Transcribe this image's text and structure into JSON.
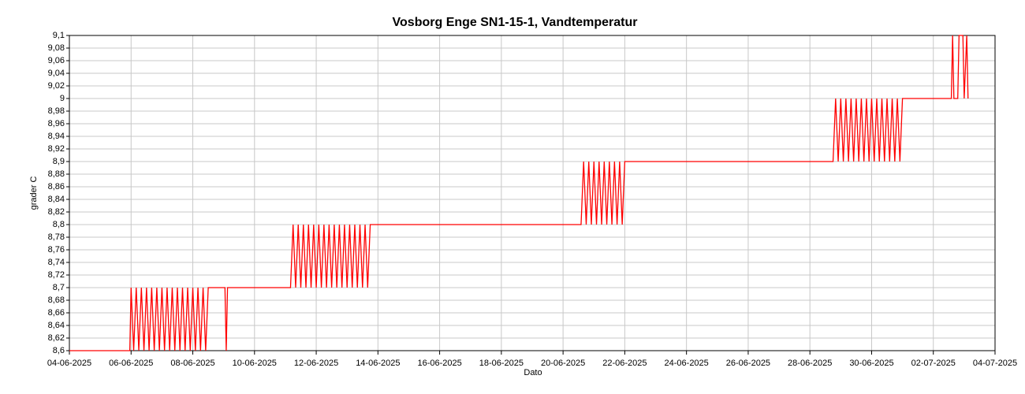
{
  "chart_data": {
    "type": "line",
    "title": "Vosborg Enge SN1-15-1, Vandtemperatur",
    "x_label": "Dato",
    "y_label": "grader C",
    "color": "#ff0000",
    "grid": true,
    "xlim": [
      "2025-06-04",
      "2025-07-04"
    ],
    "xticks": [
      {
        "value": "2025-06-04",
        "label": "04-06-2025"
      },
      {
        "value": "2025-06-06",
        "label": "06-06-2025"
      },
      {
        "value": "2025-06-08",
        "label": "08-06-2025"
      },
      {
        "value": "2025-06-10",
        "label": "10-06-2025"
      },
      {
        "value": "2025-06-12",
        "label": "12-06-2025"
      },
      {
        "value": "2025-06-14",
        "label": "14-06-2025"
      },
      {
        "value": "2025-06-16",
        "label": "16-06-2025"
      },
      {
        "value": "2025-06-18",
        "label": "18-06-2025"
      },
      {
        "value": "2025-06-20",
        "label": "20-06-2025"
      },
      {
        "value": "2025-06-22",
        "label": "22-06-2025"
      },
      {
        "value": "2025-06-24",
        "label": "24-06-2025"
      },
      {
        "value": "2025-06-26",
        "label": "26-06-2025"
      },
      {
        "value": "2025-06-28",
        "label": "28-06-2025"
      },
      {
        "value": "2025-06-30",
        "label": "30-06-2025"
      },
      {
        "value": "2025-07-02",
        "label": "02-07-2025"
      },
      {
        "value": "2025-07-04",
        "label": "04-07-2025"
      }
    ],
    "ylim": [
      8.6,
      9.1
    ],
    "yticks": [
      {
        "value": 8.6,
        "label": "8,6"
      },
      {
        "value": 8.62,
        "label": "8,62"
      },
      {
        "value": 8.64,
        "label": "8,64"
      },
      {
        "value": 8.66,
        "label": "8,66"
      },
      {
        "value": 8.68,
        "label": "8,68"
      },
      {
        "value": 8.7,
        "label": "8,7"
      },
      {
        "value": 8.72,
        "label": "8,72"
      },
      {
        "value": 8.74,
        "label": "8,74"
      },
      {
        "value": 8.76,
        "label": "8,76"
      },
      {
        "value": 8.78,
        "label": "8,78"
      },
      {
        "value": 8.8,
        "label": "8,8"
      },
      {
        "value": 8.82,
        "label": "8,82"
      },
      {
        "value": 8.84,
        "label": "8,84"
      },
      {
        "value": 8.86,
        "label": "8,86"
      },
      {
        "value": 8.88,
        "label": "8,88"
      },
      {
        "value": 8.9,
        "label": "8,9"
      },
      {
        "value": 8.92,
        "label": "8,92"
      },
      {
        "value": 8.94,
        "label": "8,94"
      },
      {
        "value": 8.96,
        "label": "8,96"
      },
      {
        "value": 8.98,
        "label": "8,98"
      },
      {
        "value": 9,
        "label": "9"
      },
      {
        "value": 9.02,
        "label": "9,02"
      },
      {
        "value": 9.04,
        "label": "9,04"
      },
      {
        "value": 9.06,
        "label": "9,06"
      },
      {
        "value": 9.08,
        "label": "9,08"
      },
      {
        "value": 9.1,
        "label": "9,1"
      }
    ],
    "x": [
      "2025-06-04 00:00",
      "2025-06-05 23:00",
      "2025-06-06 00:00",
      "2025-06-06 02:00",
      "2025-06-06 04:00",
      "2025-06-06 06:00",
      "2025-06-06 08:00",
      "2025-06-06 10:00",
      "2025-06-06 12:00",
      "2025-06-06 14:00",
      "2025-06-06 16:00",
      "2025-06-06 18:00",
      "2025-06-06 20:00",
      "2025-06-06 22:00",
      "2025-06-07 00:00",
      "2025-06-07 02:00",
      "2025-06-07 04:00",
      "2025-06-07 06:00",
      "2025-06-07 08:00",
      "2025-06-07 10:00",
      "2025-06-07 12:00",
      "2025-06-07 14:00",
      "2025-06-07 16:00",
      "2025-06-07 18:00",
      "2025-06-07 20:00",
      "2025-06-07 22:00",
      "2025-06-08 00:00",
      "2025-06-08 02:00",
      "2025-06-08 04:00",
      "2025-06-08 06:00",
      "2025-06-08 08:00",
      "2025-06-08 10:00",
      "2025-06-08 12:00",
      "2025-06-09 01:00",
      "2025-06-09 02:00",
      "2025-06-09 03:00",
      "2025-06-11 04:00",
      "2025-06-11 06:00",
      "2025-06-11 08:00",
      "2025-06-11 10:00",
      "2025-06-11 12:00",
      "2025-06-11 14:00",
      "2025-06-11 16:00",
      "2025-06-11 18:00",
      "2025-06-11 20:00",
      "2025-06-11 22:00",
      "2025-06-12 00:00",
      "2025-06-12 02:00",
      "2025-06-12 04:00",
      "2025-06-12 06:00",
      "2025-06-12 08:00",
      "2025-06-12 10:00",
      "2025-06-12 12:00",
      "2025-06-12 14:00",
      "2025-06-12 16:00",
      "2025-06-12 18:00",
      "2025-06-12 20:00",
      "2025-06-12 22:00",
      "2025-06-13 00:00",
      "2025-06-13 02:00",
      "2025-06-13 04:00",
      "2025-06-13 06:00",
      "2025-06-13 08:00",
      "2025-06-13 10:00",
      "2025-06-13 12:00",
      "2025-06-13 14:00",
      "2025-06-13 16:00",
      "2025-06-13 18:00",
      "2025-06-20 14:00",
      "2025-06-20 16:00",
      "2025-06-20 18:00",
      "2025-06-20 20:00",
      "2025-06-20 22:00",
      "2025-06-21 00:00",
      "2025-06-21 02:00",
      "2025-06-21 04:00",
      "2025-06-21 06:00",
      "2025-06-21 08:00",
      "2025-06-21 10:00",
      "2025-06-21 12:00",
      "2025-06-21 14:00",
      "2025-06-21 16:00",
      "2025-06-21 18:00",
      "2025-06-21 20:00",
      "2025-06-21 22:00",
      "2025-06-22 00:00",
      "2025-06-28 18:00",
      "2025-06-28 20:00",
      "2025-06-28 22:00",
      "2025-06-29 00:00",
      "2025-06-29 02:00",
      "2025-06-29 04:00",
      "2025-06-29 06:00",
      "2025-06-29 08:00",
      "2025-06-29 10:00",
      "2025-06-29 12:00",
      "2025-06-29 14:00",
      "2025-06-29 16:00",
      "2025-06-29 18:00",
      "2025-06-29 20:00",
      "2025-06-29 22:00",
      "2025-06-30 00:00",
      "2025-06-30 02:00",
      "2025-06-30 04:00",
      "2025-06-30 06:00",
      "2025-06-30 08:00",
      "2025-06-30 10:00",
      "2025-06-30 12:00",
      "2025-06-30 14:00",
      "2025-06-30 16:00",
      "2025-06-30 18:00",
      "2025-06-30 20:00",
      "2025-06-30 22:00",
      "2025-07-01 00:00",
      "2025-07-02 14:00",
      "2025-07-02 15:00",
      "2025-07-02 16:00",
      "2025-07-02 19:00",
      "2025-07-02 20:00",
      "2025-07-02 23:00",
      "2025-07-03 00:00",
      "2025-07-03 02:00",
      "2025-07-03 03:00"
    ],
    "values": [
      8.6,
      8.6,
      8.7,
      8.6,
      8.7,
      8.6,
      8.7,
      8.6,
      8.7,
      8.6,
      8.7,
      8.6,
      8.7,
      8.6,
      8.7,
      8.6,
      8.7,
      8.6,
      8.7,
      8.6,
      8.7,
      8.6,
      8.7,
      8.6,
      8.7,
      8.6,
      8.7,
      8.6,
      8.7,
      8.6,
      8.7,
      8.6,
      8.7,
      8.7,
      8.6,
      8.7,
      8.7,
      8.8,
      8.7,
      8.8,
      8.7,
      8.8,
      8.7,
      8.8,
      8.7,
      8.8,
      8.7,
      8.8,
      8.7,
      8.8,
      8.7,
      8.8,
      8.7,
      8.8,
      8.7,
      8.8,
      8.7,
      8.8,
      8.7,
      8.8,
      8.7,
      8.8,
      8.7,
      8.8,
      8.7,
      8.8,
      8.7,
      8.8,
      8.8,
      8.9,
      8.8,
      8.9,
      8.8,
      8.9,
      8.8,
      8.9,
      8.8,
      8.9,
      8.8,
      8.9,
      8.8,
      8.9,
      8.8,
      8.9,
      8.8,
      8.9,
      8.9,
      9,
      8.9,
      9,
      8.9,
      9,
      8.9,
      9,
      8.9,
      9,
      8.9,
      9,
      8.9,
      9,
      8.9,
      9,
      8.9,
      9,
      8.9,
      9,
      8.9,
      9,
      8.9,
      9,
      8.9,
      9,
      8.9,
      9,
      9,
      9.1,
      9,
      9,
      9.1,
      9.1,
      9,
      9.1,
      9
    ]
  }
}
